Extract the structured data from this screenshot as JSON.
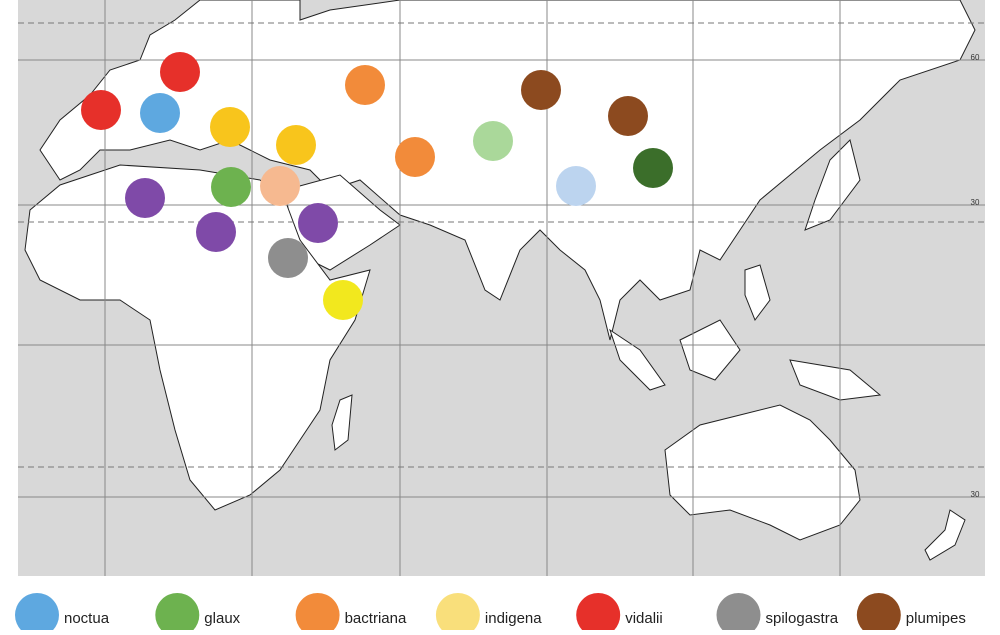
{
  "map": {
    "lat_labels": [
      "60",
      "30",
      "30"
    ],
    "legend": [
      {
        "name": "noctua",
        "color": "#5ea8e0"
      },
      {
        "name": "glaux",
        "color": "#6db24f"
      },
      {
        "name": "bactriana",
        "color": "#f28b3a"
      },
      {
        "name": "indigena",
        "color": "#f9df7b"
      },
      {
        "name": "vidalii",
        "color": "#e6302a"
      },
      {
        "name": "spilogastra",
        "color": "#8e8e8e"
      },
      {
        "name": "plumipes",
        "color": "#8c4a1f"
      }
    ]
  }
}
